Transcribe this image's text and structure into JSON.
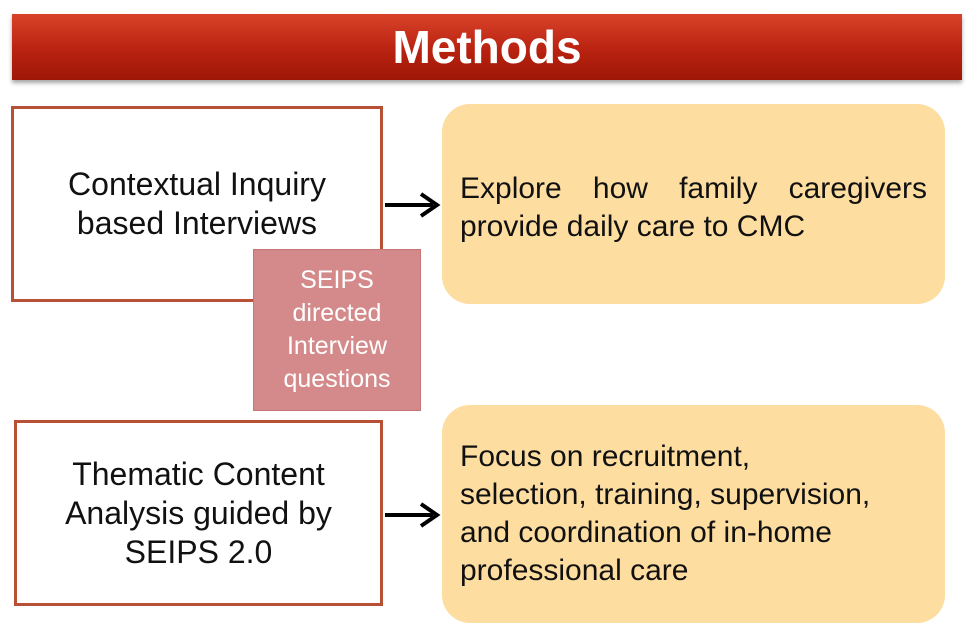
{
  "header": {
    "title": "Methods"
  },
  "rows": [
    {
      "method_lines": [
        "Contextual Inquiry",
        "based Interviews"
      ],
      "goal_lines": [
        "Explore how family caregivers",
        "provide daily care to CMC"
      ]
    },
    {
      "method_lines": [
        "Thematic Content",
        "Analysis guided by",
        "SEIPS 2.0"
      ],
      "goal_lines": [
        "Focus on recruitment,",
        "selection, training, supervision,",
        "and coordination of in-home",
        "professional care"
      ]
    }
  ],
  "note": {
    "lines": [
      "SEIPS",
      "directed",
      "Interview",
      "questions"
    ]
  },
  "colors": {
    "header": "#b92210",
    "method_border": "#b85035",
    "goal_fill": "#fddda0",
    "note_fill": "#d48a8a"
  }
}
